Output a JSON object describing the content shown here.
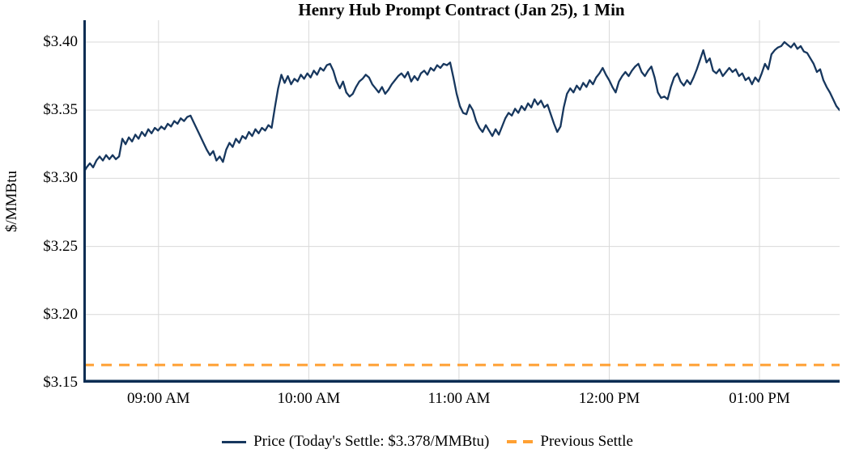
{
  "chart": {
    "title": "Henry Hub Prompt Contract (Jan 25), 1 Min",
    "y_axis_label": "$/MMBtu",
    "legend": {
      "price_label": "Price (Today's Settle: $3.378/MMBtu)",
      "previous_settle_label": "Previous Settle"
    },
    "colors": {
      "price_line": "#17375e",
      "previous_settle": "#ffa033",
      "spine": "#0b2d53",
      "gridline": "#d9d9d9",
      "text": "#000000"
    }
  },
  "chart_data": {
    "type": "line",
    "title": "Henry Hub Prompt Contract (Jan 25), 1 Min",
    "xlabel": "",
    "ylabel": "$/MMBtu",
    "grid": true,
    "legend_position": "bottom",
    "ylim": [
      3.15,
      3.416
    ],
    "y_ticks": [
      {
        "value": 3.15,
        "label": "$3.15"
      },
      {
        "value": 3.2,
        "label": "$3.20"
      },
      {
        "value": 3.25,
        "label": "$3.25"
      },
      {
        "value": 3.3,
        "label": "$3.30"
      },
      {
        "value": 3.35,
        "label": "$3.35"
      },
      {
        "value": 3.4,
        "label": "$3.40"
      }
    ],
    "x_total_minutes": 302,
    "x_ticks": [
      {
        "minutes": 30,
        "label": "09:00 AM"
      },
      {
        "minutes": 90,
        "label": "10:00 AM"
      },
      {
        "minutes": 150,
        "label": "11:00 AM"
      },
      {
        "minutes": 210,
        "label": "12:00 PM"
      },
      {
        "minutes": 270,
        "label": "01:00 PM"
      }
    ],
    "todays_settle_value": 3.378,
    "previous_settle_value": 3.163,
    "series": [
      {
        "name": "Price",
        "unit": "$/MMBtu",
        "note": "1-min prices, evenly spaced across x_total_minutes",
        "values": [
          3.304,
          3.308,
          3.311,
          3.308,
          3.313,
          3.316,
          3.313,
          3.317,
          3.314,
          3.317,
          3.314,
          3.316,
          3.329,
          3.325,
          3.33,
          3.327,
          3.332,
          3.329,
          3.334,
          3.331,
          3.336,
          3.333,
          3.337,
          3.335,
          3.338,
          3.336,
          3.34,
          3.338,
          3.342,
          3.34,
          3.344,
          3.342,
          3.345,
          3.346,
          3.341,
          3.336,
          3.331,
          3.326,
          3.321,
          3.317,
          3.32,
          3.313,
          3.316,
          3.312,
          3.321,
          3.326,
          3.323,
          3.329,
          3.326,
          3.331,
          3.329,
          3.334,
          3.331,
          3.336,
          3.333,
          3.337,
          3.335,
          3.339,
          3.337,
          3.352,
          3.366,
          3.376,
          3.37,
          3.375,
          3.369,
          3.373,
          3.371,
          3.376,
          3.373,
          3.377,
          3.374,
          3.379,
          3.376,
          3.381,
          3.379,
          3.383,
          3.384,
          3.379,
          3.371,
          3.366,
          3.371,
          3.363,
          3.36,
          3.362,
          3.367,
          3.371,
          3.373,
          3.376,
          3.374,
          3.369,
          3.366,
          3.363,
          3.367,
          3.362,
          3.365,
          3.369,
          3.372,
          3.375,
          3.377,
          3.374,
          3.378,
          3.371,
          3.375,
          3.372,
          3.377,
          3.379,
          3.376,
          3.381,
          3.379,
          3.383,
          3.381,
          3.384,
          3.383,
          3.385,
          3.374,
          3.362,
          3.353,
          3.348,
          3.347,
          3.354,
          3.35,
          3.342,
          3.337,
          3.334,
          3.339,
          3.335,
          3.331,
          3.336,
          3.332,
          3.338,
          3.344,
          3.348,
          3.346,
          3.351,
          3.348,
          3.353,
          3.35,
          3.355,
          3.352,
          3.358,
          3.354,
          3.357,
          3.352,
          3.354,
          3.347,
          3.34,
          3.334,
          3.338,
          3.352,
          3.362,
          3.366,
          3.363,
          3.368,
          3.365,
          3.37,
          3.367,
          3.372,
          3.369,
          3.374,
          3.377,
          3.381,
          3.376,
          3.372,
          3.367,
          3.363,
          3.371,
          3.375,
          3.378,
          3.375,
          3.379,
          3.382,
          3.384,
          3.378,
          3.375,
          3.379,
          3.382,
          3.374,
          3.363,
          3.359,
          3.36,
          3.358,
          3.367,
          3.374,
          3.377,
          3.371,
          3.368,
          3.372,
          3.369,
          3.374,
          3.38,
          3.387,
          3.394,
          3.385,
          3.388,
          3.379,
          3.377,
          3.38,
          3.375,
          3.378,
          3.381,
          3.378,
          3.38,
          3.375,
          3.377,
          3.372,
          3.374,
          3.369,
          3.374,
          3.371,
          3.377,
          3.384,
          3.38,
          3.391,
          3.394,
          3.396,
          3.397,
          3.4,
          3.398,
          3.396,
          3.399,
          3.395,
          3.397,
          3.393,
          3.392,
          3.388,
          3.384,
          3.378,
          3.38,
          3.372,
          3.367,
          3.363,
          3.358,
          3.353,
          3.35
        ]
      }
    ]
  }
}
